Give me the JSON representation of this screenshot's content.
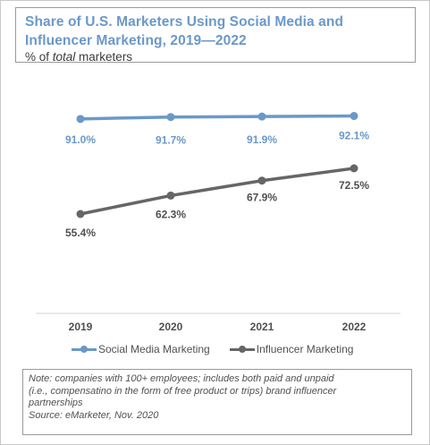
{
  "header": {
    "title_line1": "Share of U.S. Marketers Using Social Media and",
    "title_line2": "Influencer Marketing, 2019—2022",
    "subtitle_prefix": "% of ",
    "subtitle_emph": "total",
    "subtitle_suffix": " marketers"
  },
  "chart_data": {
    "type": "line",
    "title": "Share of U.S. Marketers Using Social Media and Influencer Marketing, 2019—2022",
    "subtitle": "% of total marketers",
    "categories": [
      "2019",
      "2020",
      "2021",
      "2022"
    ],
    "series": [
      {
        "name": "Social Media Marketing",
        "color": "#6b98c9",
        "values": [
          91.0,
          91.7,
          91.9,
          92.1
        ],
        "labels": [
          "91.0%",
          "91.7%",
          "91.9%",
          "92.1%"
        ]
      },
      {
        "name": "Influencer Marketing",
        "color": "#666666",
        "values": [
          55.4,
          62.3,
          67.9,
          72.5
        ],
        "labels": [
          "55.4%",
          "62.3%",
          "67.9%",
          "72.5%"
        ]
      }
    ],
    "grid": false,
    "legend_position": "bottom"
  },
  "note": {
    "line1": "Note: companies with 100+ employees; includes both paid and unpaid",
    "line2": "(i.e., compensatino in the form of free product or trips) brand influencer",
    "line3": "partnerships",
    "source": "Source: eMarketer, Nov. 2020"
  }
}
